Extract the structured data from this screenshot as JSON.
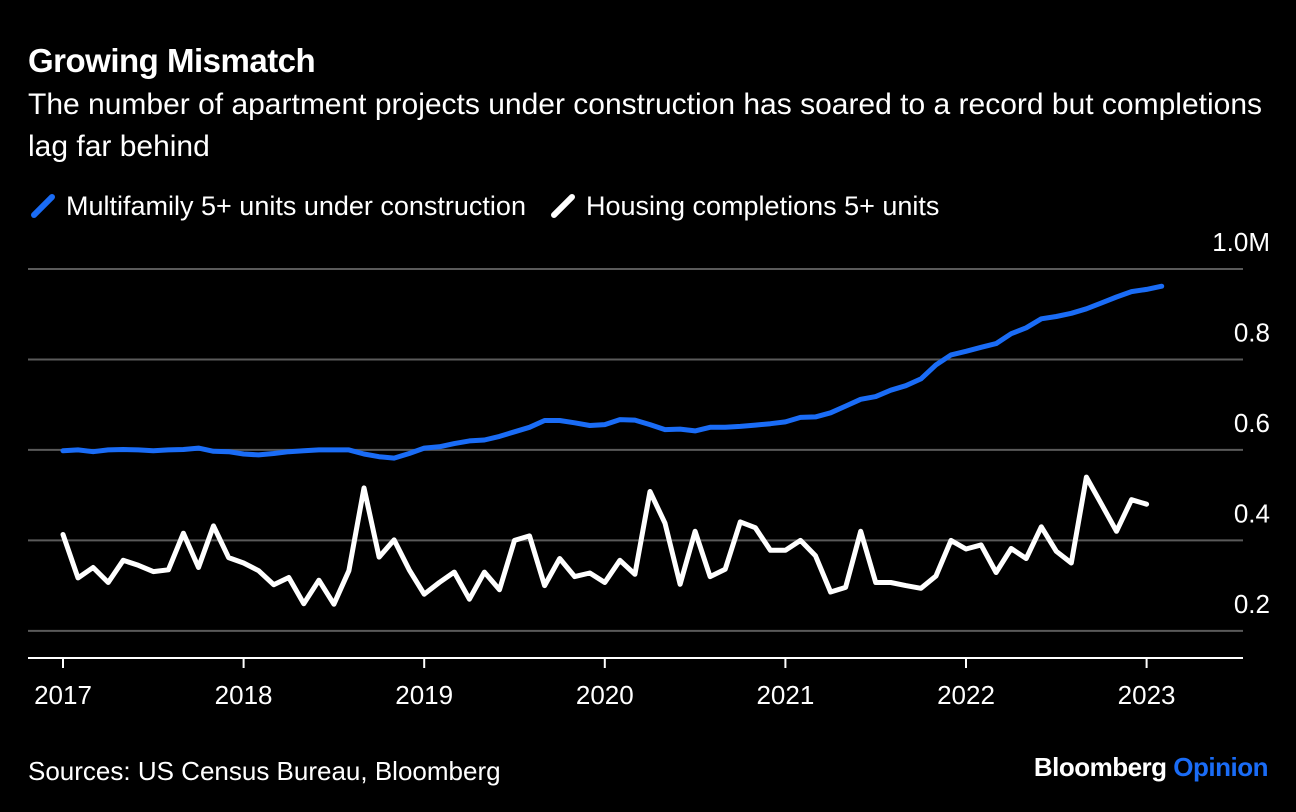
{
  "header": {
    "title": "Growing Mismatch",
    "subtitle": "The number of apartment projects under construction has soared to a record but completions lag far behind"
  },
  "footer": {
    "source": "Sources: US Census Bureau, Bloomberg",
    "brand_main": "Bloomberg",
    "brand_accent": "Opinion"
  },
  "colors": {
    "background": "#000000",
    "series_construction": "#1a6cf6",
    "series_completions": "#ffffff",
    "grid": "#5a5a5a",
    "brand_accent": "#1a6cf6"
  },
  "chart_data": {
    "type": "line",
    "title": "Growing Mismatch",
    "subtitle": "The number of apartment projects under construction has soared to a record but completions lag far behind",
    "xlabel": "",
    "ylabel": "",
    "x_start": "2017-01",
    "x_tick_labels": [
      "2017",
      "2018",
      "2019",
      "2020",
      "2021",
      "2022",
      "2023"
    ],
    "x_tick_months": [
      "2017-01",
      "2018-01",
      "2019-01",
      "2020-01",
      "2021-01",
      "2022-01",
      "2023-01"
    ],
    "x_range": [
      "2017-01",
      "2023-12"
    ],
    "y_ticks": [
      0.2,
      0.4,
      0.6,
      0.8,
      1.0
    ],
    "y_tick_labels": [
      "0.2",
      "0.4",
      "0.6",
      "0.8",
      "1.0M"
    ],
    "ylim": [
      0.14,
      1.0
    ],
    "y_axis_side": "right",
    "grid": true,
    "legend_position": "top-left",
    "series": [
      {
        "name": "Multifamily 5+ units under construction",
        "color": "#1a6cf6",
        "values": [
          0.598,
          0.6,
          0.596,
          0.6,
          0.601,
          0.6,
          0.598,
          0.6,
          0.601,
          0.604,
          0.597,
          0.596,
          0.591,
          0.589,
          0.592,
          0.596,
          0.598,
          0.6,
          0.6,
          0.6,
          0.591,
          0.585,
          0.582,
          0.592,
          0.604,
          0.607,
          0.614,
          0.62,
          0.622,
          0.63,
          0.64,
          0.65,
          0.665,
          0.665,
          0.66,
          0.654,
          0.656,
          0.667,
          0.666,
          0.656,
          0.645,
          0.646,
          0.642,
          0.65,
          0.65,
          0.652,
          0.655,
          0.658,
          0.662,
          0.672,
          0.673,
          0.682,
          0.697,
          0.712,
          0.718,
          0.732,
          0.742,
          0.757,
          0.788,
          0.81,
          0.818,
          0.827,
          0.835,
          0.857,
          0.87,
          0.89,
          0.895,
          0.902,
          0.912,
          0.925,
          0.938,
          0.95,
          0.955,
          0.962
        ]
      },
      {
        "name": "Housing completions 5+ units",
        "color": "#ffffff",
        "values": [
          0.413,
          0.317,
          0.34,
          0.307,
          0.356,
          0.345,
          0.331,
          0.335,
          0.416,
          0.34,
          0.432,
          0.362,
          0.35,
          0.333,
          0.302,
          0.318,
          0.26,
          0.312,
          0.259,
          0.333,
          0.516,
          0.363,
          0.401,
          0.335,
          0.281,
          0.307,
          0.33,
          0.27,
          0.33,
          0.291,
          0.4,
          0.41,
          0.3,
          0.36,
          0.32,
          0.328,
          0.307,
          0.356,
          0.325,
          0.508,
          0.438,
          0.303,
          0.42,
          0.32,
          0.336,
          0.441,
          0.428,
          0.378,
          0.378,
          0.4,
          0.366,
          0.286,
          0.296,
          0.42,
          0.307,
          0.307,
          0.3,
          0.294,
          0.321,
          0.4,
          0.381,
          0.39,
          0.329,
          0.382,
          0.36,
          0.43,
          0.376,
          0.35,
          0.54,
          0.48,
          0.42,
          0.49,
          0.48
        ]
      }
    ]
  }
}
